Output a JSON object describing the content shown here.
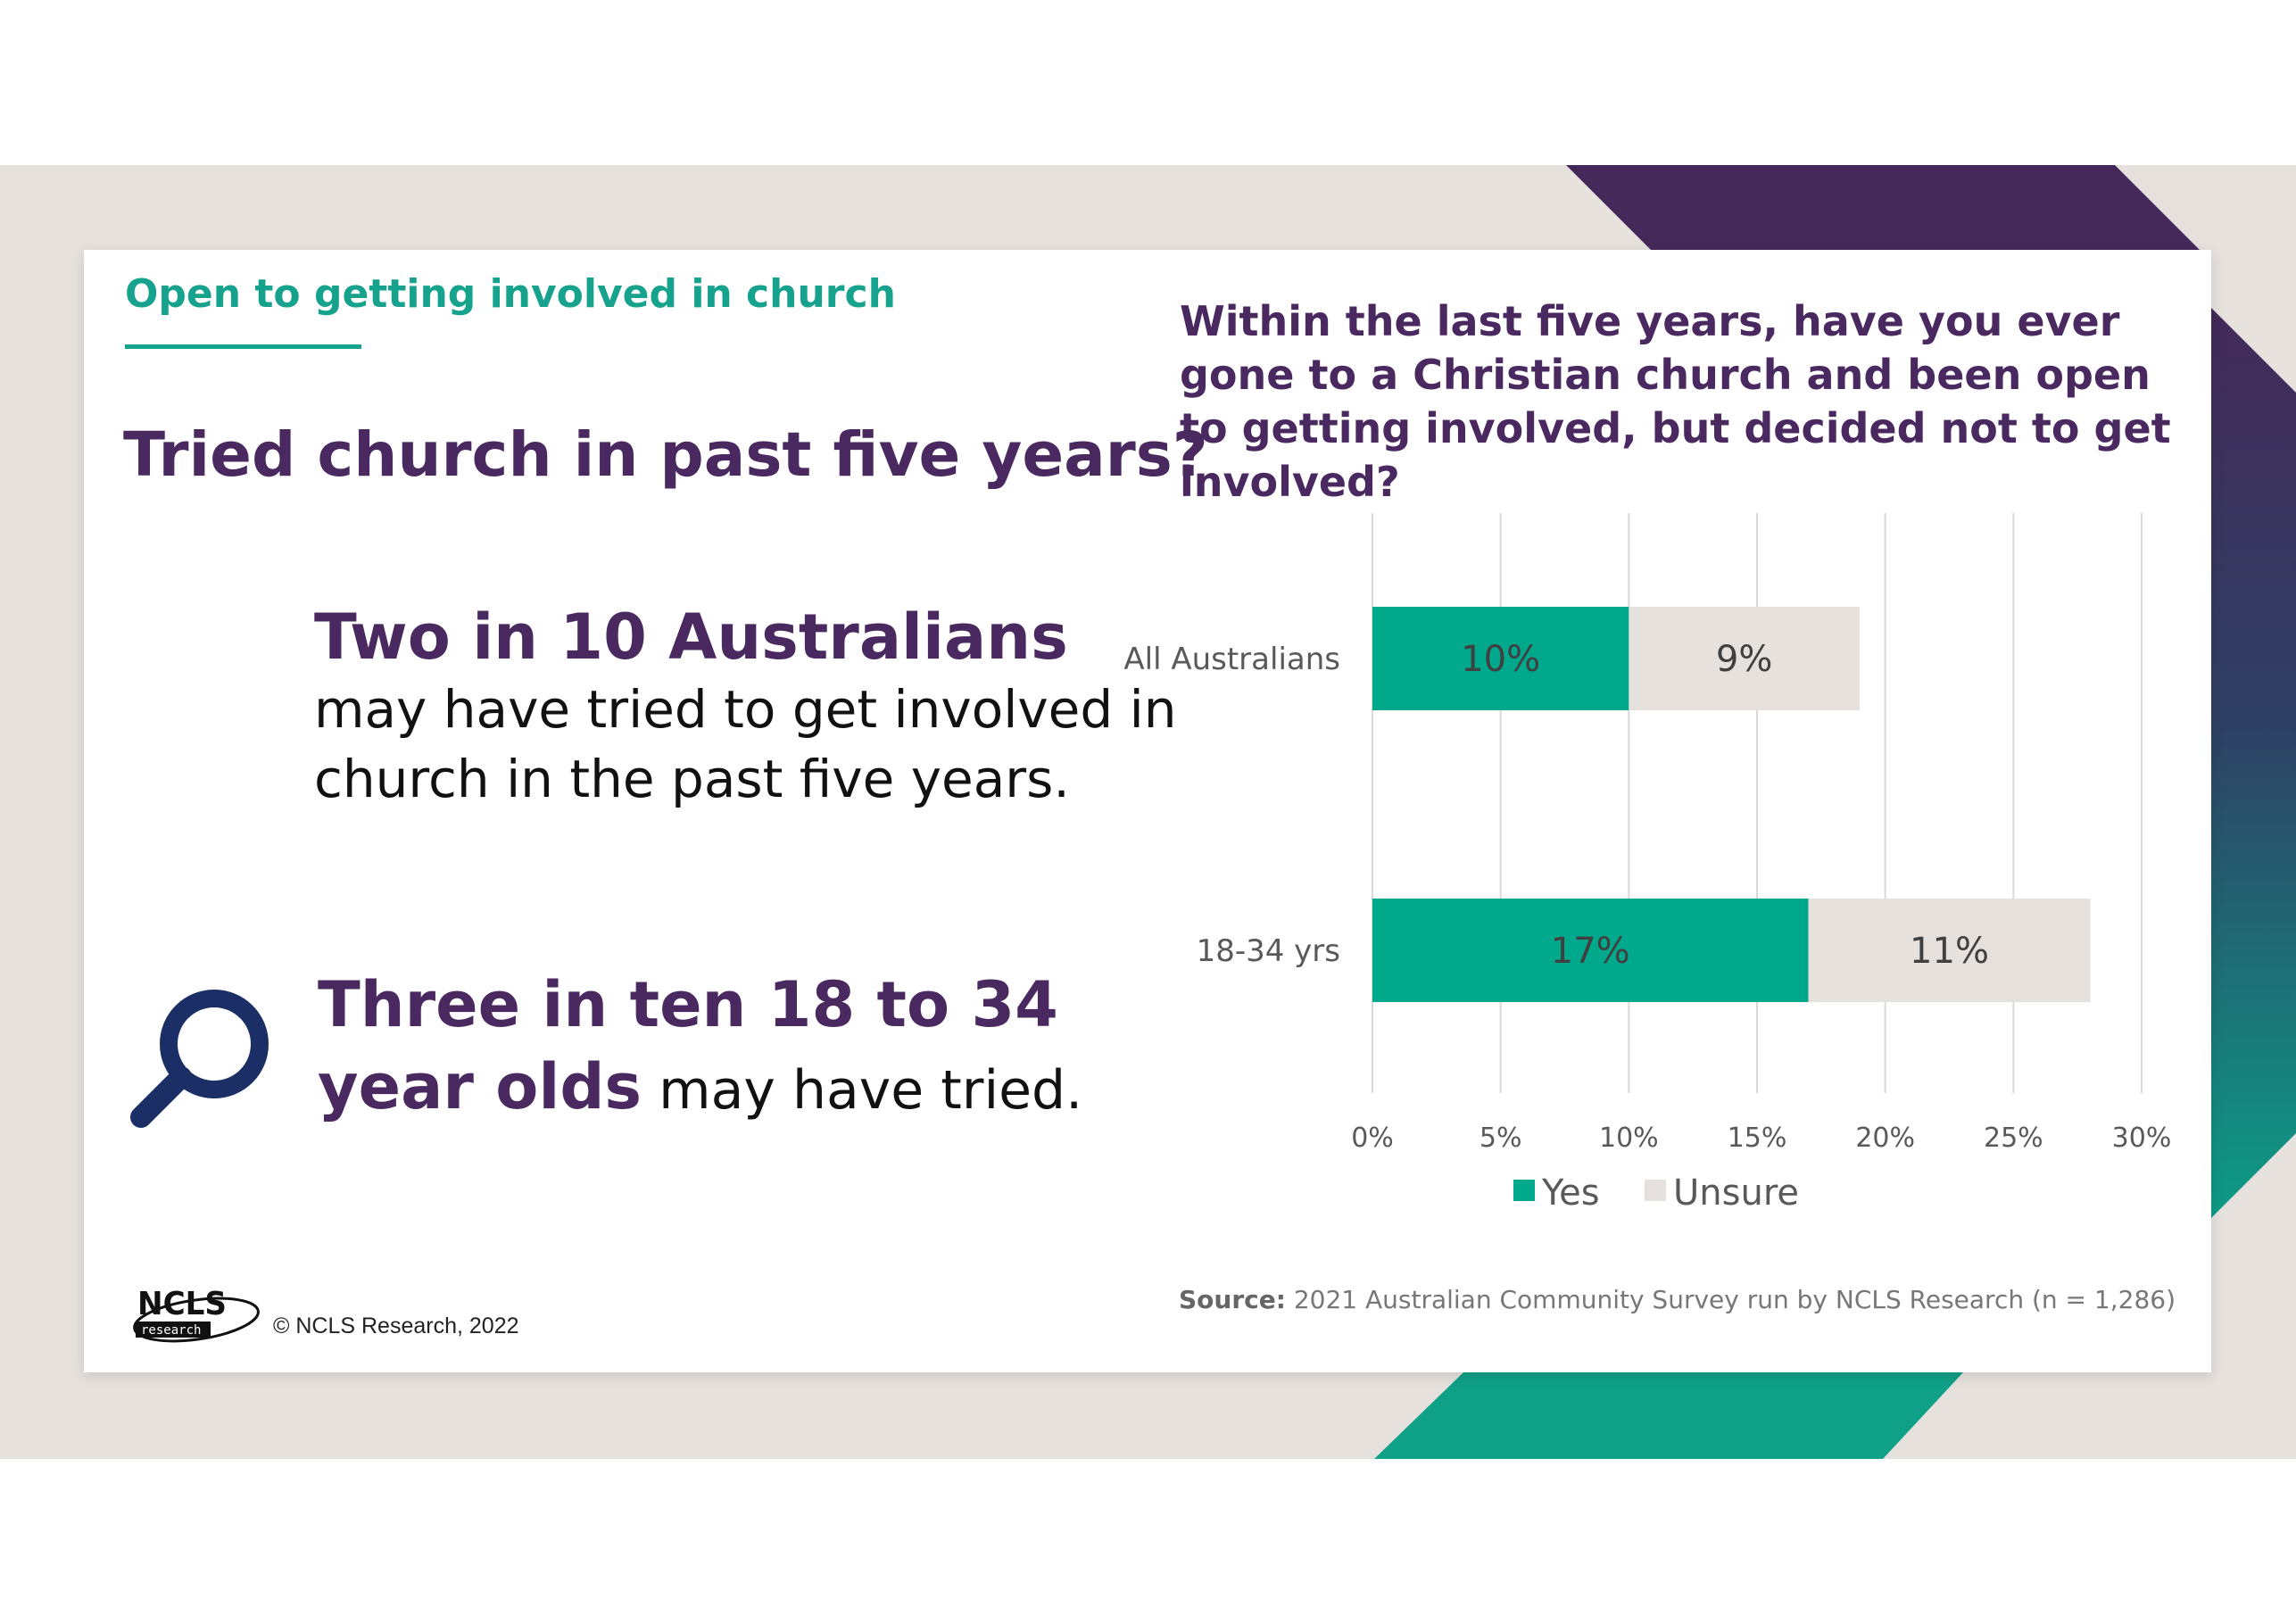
{
  "slide": {
    "section_tag": "Open to getting involved in church",
    "headline": "Tried church in past five years?",
    "stat1_strong": "Two in 10 Australians",
    "stat1_body": "may have tried to get involved in church in the past five years.",
    "stat2_strong_line1": "Three in ten 18 to 34",
    "stat2_strong_line2": "year olds",
    "stat2_rest": " may have tried.",
    "source_label": "Source:",
    "source_text": " 2021 Australian Community Survey run by NCLS Research (n = 1,286)",
    "logo_main": "NCLS",
    "logo_sub": "research",
    "copyright": "© NCLS Research, 2022",
    "icon": "magnifying-glass-icon"
  },
  "colors": {
    "purple": "#4a2860",
    "teal": "#16a28c",
    "beige": "#e6e1dd"
  },
  "chart_data": {
    "type": "bar",
    "orientation": "horizontal",
    "stacked": true,
    "title": "Within the last five years, have you ever gone to a Christian church and been open to getting involved, but decided not to get involved?",
    "categories": [
      "All Australians",
      "18-34 yrs"
    ],
    "series": [
      {
        "name": "Yes",
        "values": [
          10,
          17
        ],
        "labels": [
          "10%",
          "17%"
        ],
        "color": "#00a88c"
      },
      {
        "name": "Unsure",
        "values": [
          9,
          11
        ],
        "labels": [
          "9%",
          "11%"
        ],
        "color": "#e6e1dd"
      }
    ],
    "xlim": [
      0,
      30
    ],
    "xticks": [
      "0%",
      "5%",
      "10%",
      "15%",
      "20%",
      "25%",
      "30%"
    ],
    "grid": true,
    "legend": "bottom"
  }
}
